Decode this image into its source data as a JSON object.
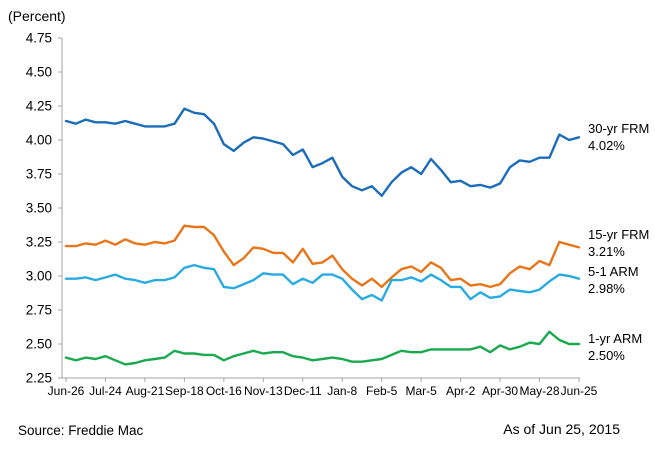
{
  "title": "(Percent)",
  "source": "Source: Freddie Mac",
  "as_of": "As of Jun 25, 2015",
  "colors": {
    "frm30": "#1b6cb9",
    "frm15": "#e8751a",
    "arm51": "#29abe2",
    "arm1": "#1aa94e",
    "axis": "#a6a6a6",
    "text": "#000000"
  },
  "series_labels": [
    {
      "name": "30-yr FRM",
      "value": "4.02%"
    },
    {
      "name": "15-yr FRM",
      "value": "3.21%"
    },
    {
      "name": "5-1 ARM",
      "value": "2.98%"
    },
    {
      "name": "1-yr ARM",
      "value": "2.50%"
    }
  ],
  "chart_data": {
    "type": "line",
    "title": "(Percent)",
    "xlabel": "",
    "ylabel": "(Percent)",
    "ylim": [
      2.25,
      4.75
    ],
    "grid": false,
    "legend_position": "right-of-line-ends",
    "x_count": 53,
    "x_tick_labels": [
      "Jun-26",
      "Jul-24",
      "Aug-21",
      "Sep-18",
      "Oct-16",
      "Nov-13",
      "Dec-11",
      "Jan-8",
      "Feb-5",
      "Mar-5",
      "Apr-2",
      "Apr-30",
      "May-28",
      "Jun-25"
    ],
    "x_tick_weeks": [
      0,
      4,
      8,
      12,
      16,
      20,
      24,
      28,
      32,
      36,
      40,
      44,
      48,
      52
    ],
    "y_ticks": [
      "2.25",
      "2.50",
      "2.75",
      "3.00",
      "3.25",
      "3.50",
      "3.75",
      "4.00",
      "4.25",
      "4.50",
      "4.75"
    ],
    "series": [
      {
        "name": "30-yr FRM",
        "end_label": "4.02%",
        "color_key": "frm30",
        "values": [
          4.14,
          4.12,
          4.15,
          4.13,
          4.13,
          4.12,
          4.14,
          4.12,
          4.1,
          4.1,
          4.1,
          4.12,
          4.23,
          4.2,
          4.19,
          4.12,
          3.97,
          3.92,
          3.98,
          4.02,
          4.01,
          3.99,
          3.97,
          3.89,
          3.93,
          3.8,
          3.83,
          3.87,
          3.73,
          3.66,
          3.63,
          3.66,
          3.59,
          3.69,
          3.76,
          3.8,
          3.75,
          3.86,
          3.78,
          3.69,
          3.7,
          3.66,
          3.67,
          3.65,
          3.68,
          3.8,
          3.85,
          3.84,
          3.87,
          3.87,
          4.04,
          4.0,
          4.02
        ]
      },
      {
        "name": "15-yr FRM",
        "end_label": "3.21%",
        "color_key": "frm15",
        "values": [
          3.22,
          3.22,
          3.24,
          3.23,
          3.26,
          3.23,
          3.27,
          3.24,
          3.23,
          3.25,
          3.24,
          3.26,
          3.37,
          3.36,
          3.36,
          3.3,
          3.18,
          3.08,
          3.13,
          3.21,
          3.2,
          3.17,
          3.17,
          3.1,
          3.2,
          3.09,
          3.1,
          3.15,
          3.05,
          2.98,
          2.93,
          2.98,
          2.92,
          2.99,
          3.05,
          3.07,
          3.03,
          3.1,
          3.06,
          2.97,
          2.98,
          2.93,
          2.94,
          2.92,
          2.94,
          3.02,
          3.07,
          3.05,
          3.11,
          3.08,
          3.25,
          3.23,
          3.21
        ]
      },
      {
        "name": "5-1 ARM",
        "end_label": "2.98%",
        "color_key": "arm51",
        "values": [
          2.98,
          2.98,
          2.99,
          2.97,
          2.99,
          3.01,
          2.98,
          2.97,
          2.95,
          2.97,
          2.97,
          2.99,
          3.06,
          3.08,
          3.06,
          3.05,
          2.92,
          2.91,
          2.94,
          2.97,
          3.02,
          3.01,
          3.01,
          2.94,
          2.98,
          2.95,
          3.01,
          3.01,
          2.98,
          2.9,
          2.83,
          2.86,
          2.82,
          2.97,
          2.97,
          2.99,
          2.96,
          3.01,
          2.97,
          2.92,
          2.92,
          2.83,
          2.88,
          2.84,
          2.85,
          2.9,
          2.89,
          2.88,
          2.9,
          2.96,
          3.01,
          3.0,
          2.98
        ]
      },
      {
        "name": "1-yr ARM",
        "end_label": "2.50%",
        "color_key": "arm1",
        "values": [
          2.4,
          2.38,
          2.4,
          2.39,
          2.41,
          2.38,
          2.35,
          2.36,
          2.38,
          2.39,
          2.4,
          2.45,
          2.43,
          2.43,
          2.42,
          2.42,
          2.38,
          2.41,
          2.43,
          2.45,
          2.43,
          2.44,
          2.44,
          2.41,
          2.4,
          2.38,
          2.39,
          2.4,
          2.39,
          2.37,
          2.37,
          2.38,
          2.39,
          2.42,
          2.45,
          2.44,
          2.44,
          2.46,
          2.46,
          2.46,
          2.46,
          2.46,
          2.48,
          2.44,
          2.49,
          2.46,
          2.48,
          2.51,
          2.5,
          2.59,
          2.53,
          2.5,
          2.5
        ]
      }
    ]
  }
}
